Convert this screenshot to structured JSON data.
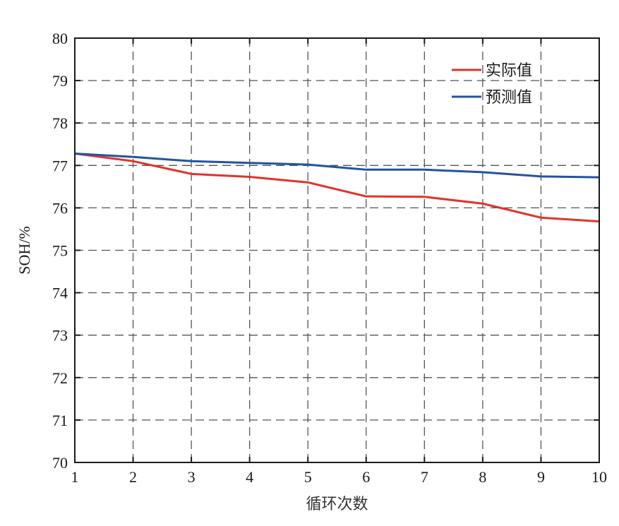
{
  "chart_data": {
    "type": "line",
    "title": "",
    "xlabel": "循环次数",
    "ylabel": "SOH/%",
    "x": [
      1,
      2,
      3,
      4,
      5,
      6,
      7,
      8,
      9,
      10
    ],
    "xlim": [
      1,
      10
    ],
    "ylim": [
      70,
      80
    ],
    "xticks": [
      "1",
      "2",
      "3",
      "4",
      "5",
      "6",
      "7",
      "8",
      "9",
      "10"
    ],
    "yticks": [
      "70",
      "71",
      "72",
      "73",
      "74",
      "75",
      "76",
      "77",
      "78",
      "79",
      "80"
    ],
    "grid": true,
    "legend_position": "top-right",
    "series": [
      {
        "name": "实际值",
        "color": "#e0342b",
        "values": [
          77.28,
          77.1,
          76.8,
          76.73,
          76.6,
          76.27,
          76.26,
          76.1,
          75.77,
          75.68
        ]
      },
      {
        "name": "预测值",
        "color": "#2553a0",
        "values": [
          77.28,
          77.2,
          77.1,
          77.06,
          77.02,
          76.9,
          76.9,
          76.84,
          76.74,
          76.72
        ]
      }
    ]
  }
}
